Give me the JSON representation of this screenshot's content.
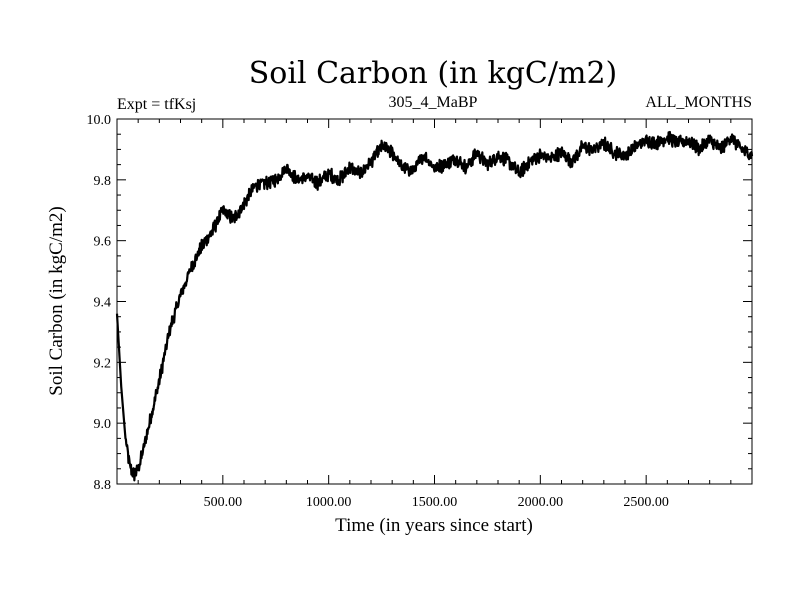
{
  "chart_data": {
    "type": "line",
    "title": "Soil Carbon (in kgC/m2)",
    "subtitle_left": "Expt = tfKsj",
    "subtitle_center": "305_4_MaBP",
    "subtitle_right": "ALL_MONTHS",
    "xlabel": "Time (in years since start)",
    "ylabel": "Soil Carbon (in kgC/m2)",
    "xlim": [
      0,
      3000
    ],
    "ylim": [
      8.8,
      10.0
    ],
    "xticks": [
      500,
      1000,
      1500,
      2000,
      2500
    ],
    "xtick_labels": [
      "500.00",
      "1000.00",
      "1500.00",
      "2000.00",
      "2500.00"
    ],
    "yticks": [
      8.8,
      9.0,
      9.2,
      9.4,
      9.6,
      9.8,
      10.0
    ],
    "ytick_labels": [
      "8.8",
      "9.0",
      "9.2",
      "9.4",
      "9.6",
      "9.8",
      "10.0"
    ],
    "series": [
      {
        "name": "Soil Carbon",
        "x": [
          0,
          20,
          40,
          60,
          80,
          100,
          120,
          150,
          200,
          250,
          300,
          350,
          400,
          450,
          500,
          550,
          600,
          650,
          700,
          750,
          800,
          850,
          900,
          950,
          1000,
          1050,
          1100,
          1150,
          1200,
          1250,
          1300,
          1350,
          1400,
          1450,
          1500,
          1550,
          1600,
          1650,
          1700,
          1750,
          1800,
          1850,
          1900,
          1950,
          2000,
          2050,
          2100,
          2150,
          2200,
          2250,
          2300,
          2350,
          2400,
          2450,
          2500,
          2550,
          2600,
          2650,
          2700,
          2750,
          2800,
          2850,
          2900,
          2950,
          3000
        ],
        "values": [
          9.36,
          9.12,
          8.95,
          8.86,
          8.83,
          8.85,
          8.9,
          8.99,
          9.14,
          9.31,
          9.42,
          9.51,
          9.58,
          9.63,
          9.7,
          9.67,
          9.72,
          9.78,
          9.79,
          9.8,
          9.84,
          9.8,
          9.81,
          9.79,
          9.82,
          9.8,
          9.84,
          9.82,
          9.86,
          9.91,
          9.89,
          9.84,
          9.83,
          9.88,
          9.84,
          9.85,
          9.87,
          9.84,
          9.89,
          9.85,
          9.88,
          9.86,
          9.82,
          9.86,
          9.88,
          9.87,
          9.89,
          9.86,
          9.91,
          9.9,
          9.92,
          9.89,
          9.88,
          9.91,
          9.93,
          9.92,
          9.94,
          9.92,
          9.93,
          9.9,
          9.93,
          9.9,
          9.94,
          9.9,
          9.88
        ]
      }
    ]
  }
}
